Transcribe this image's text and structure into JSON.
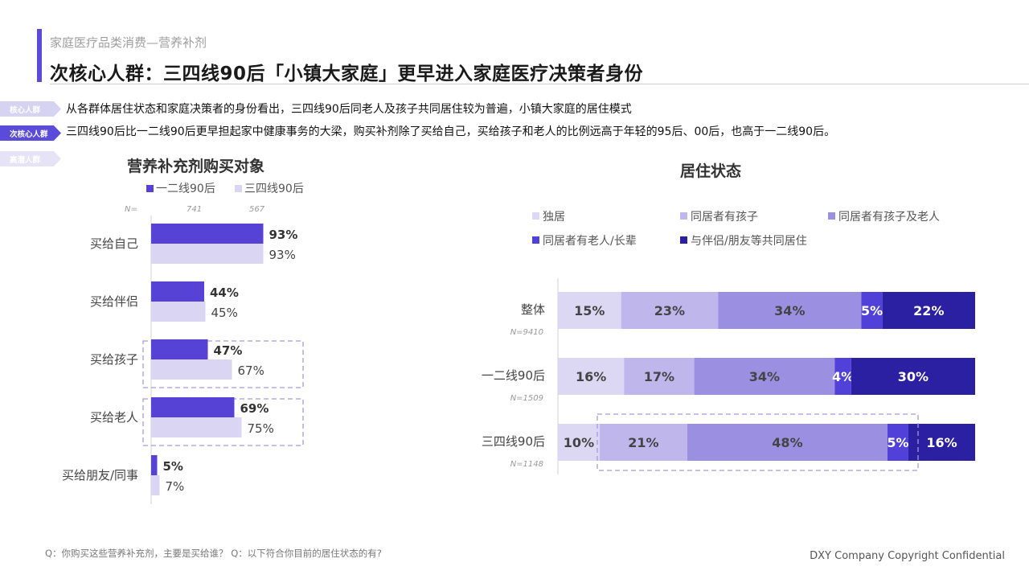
{
  "header": {
    "subtitle": "家庭医疗品类消费—营养补剂",
    "title": "次核心人群：三四线90后「小镇大家庭」更早进入家庭医疗决策者身份"
  },
  "segments": [
    {
      "tag": "核心人群",
      "text": "从各群体居住状态和家庭决策者的身份看出，三四线90后同老人及孩子共同居住较为普遍，小镇大家庭的居住模式"
    },
    {
      "tag": "次核心人群",
      "text": "三四线90后比一二线90后更早担起家中健康事务的大梁，购买补剂除了买给自己，买给孩子和老人的比例远高于年轻的95后、00后，也高于一二线90后。"
    },
    {
      "tag": "高潜人群",
      "text": ""
    }
  ],
  "colors": {
    "accent": "#5b4bd9",
    "tag_core": "#d6d2f2",
    "tag_active": "#5b4bd9",
    "tag_potential": "#e6e3f7",
    "highlight_box": "#a59ae0"
  },
  "chart_data": [
    {
      "type": "bar",
      "orientation": "horizontal",
      "title": "营养补充剂购买对象",
      "categories": [
        "买给自己",
        "买给伴侣",
        "买给孩子",
        "买给老人",
        "买给朋友/同事"
      ],
      "series": [
        {
          "name": "一二线90后",
          "n": "741",
          "values": [
            93,
            44,
            47,
            69,
            5
          ],
          "labels": [
            "93%",
            "44%",
            "47%",
            "69%",
            "5%"
          ],
          "color": "#5643d6"
        },
        {
          "name": "三四线90后",
          "n": "567",
          "values": [
            93,
            45,
            67,
            75,
            7
          ],
          "labels": [
            "93%",
            "45%",
            "67%",
            "75%",
            "7%"
          ],
          "color": "#d9d5f3"
        }
      ],
      "n_label": "N=",
      "highlighted_categories": [
        "买给孩子",
        "买给老人"
      ],
      "xlim": [
        0,
        100
      ],
      "legend_position": "top"
    },
    {
      "type": "bar",
      "orientation": "horizontal",
      "stacked": true,
      "title": "居住状态",
      "categories": [
        "整体",
        "一二线90后",
        "三四线90后"
      ],
      "category_n": [
        "N=9410",
        "N=1509",
        "N=1148"
      ],
      "series": [
        {
          "name": "独居",
          "values": [
            15,
            16,
            10
          ],
          "labels": [
            "15%",
            "16%",
            "10%"
          ],
          "color": "#dcd8f4"
        },
        {
          "name": "同居者有孩子",
          "values": [
            23,
            17,
            21
          ],
          "labels": [
            "23%",
            "17%",
            "21%"
          ],
          "color": "#bfb7ec"
        },
        {
          "name": "同居者有孩子及老人",
          "values": [
            34,
            34,
            48
          ],
          "labels": [
            "34%",
            "34%",
            "48%"
          ],
          "color": "#9b8fe2"
        },
        {
          "name": "同居者有老人/长辈",
          "values": [
            5,
            4,
            5
          ],
          "labels": [
            "5%",
            "4%",
            "5%"
          ],
          "color": "#5141d8"
        },
        {
          "name": "与伴侣/朋友等共同居住",
          "values": [
            22,
            30,
            16
          ],
          "labels": [
            "22%",
            "30%",
            "16%"
          ],
          "color": "#2b1fa2"
        }
      ],
      "highlighted_category": "三四线90后",
      "legend_position": "top"
    }
  ],
  "footer": {
    "note": "Q：你购买这些营养补充剂，主要是买给谁？ Q：以下符合你目前的居住状态的有?",
    "copyright": "DXY Company Copyright Confidential"
  }
}
